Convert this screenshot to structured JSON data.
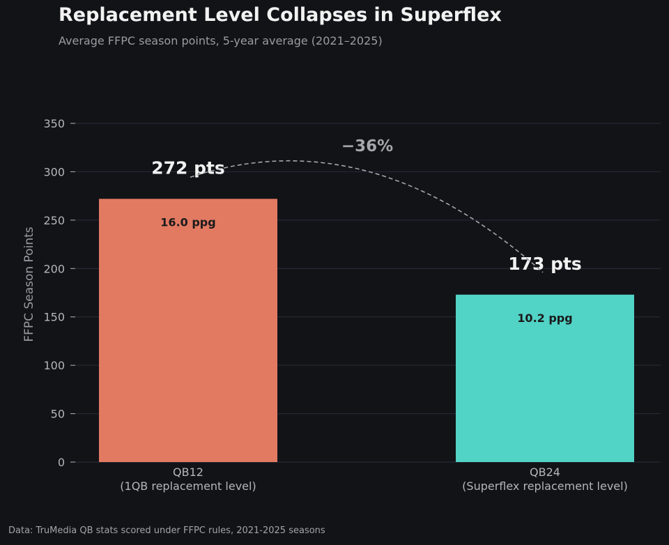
{
  "chart_data": {
    "type": "bar",
    "title": "Replacement Level Collapses in Superflex",
    "subtitle": "Average FFPC season points, 5-year average (2021–2025)",
    "ylabel": "FFPC Season Points",
    "xlabel": "",
    "ylim": [
      0,
      350
    ],
    "yticks": [
      0,
      50,
      100,
      150,
      200,
      250,
      300,
      350
    ],
    "grid": true,
    "categories": [
      {
        "name": "QB12",
        "detail": "(1QB replacement level)"
      },
      {
        "name": "QB24",
        "detail": "(Superflex replacement level)"
      }
    ],
    "values": [
      272,
      173
    ],
    "colors": [
      "#e27a62",
      "#51d3c6"
    ],
    "total_labels": [
      "272 pts",
      "173 pts"
    ],
    "inner_labels": [
      "16.0 ppg",
      "10.2 ppg"
    ],
    "annotation": {
      "text": "−36%",
      "from": "QB12",
      "to": "QB24",
      "style": "dashed curved arrow"
    },
    "source": "Data: TruMedia QB stats scored under FFPC rules, 2021-2025 seasons"
  }
}
